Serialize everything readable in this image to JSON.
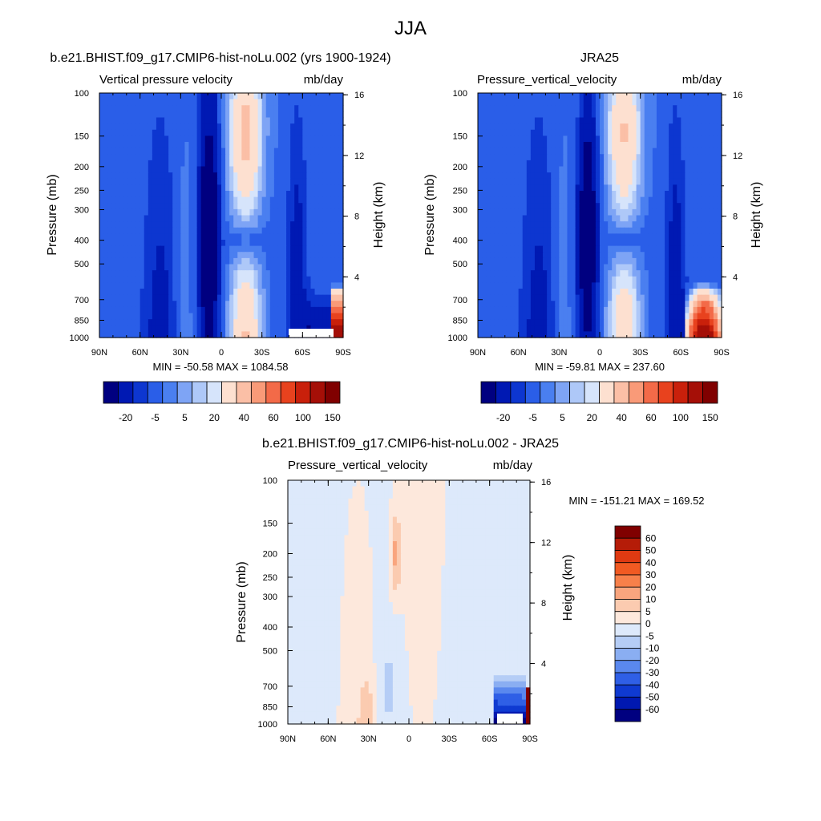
{
  "figure": {
    "title": "JJA"
  },
  "chart_data": [
    {
      "type": "heatmap",
      "case_title": "b.e21.BHIST.f09_g17.CMIP6-hist-noLu.002 (yrs 1900-1924)",
      "variable": "Vertical pressure velocity",
      "units": "mb/day",
      "ylabel": "Pressure (mb)",
      "ylabel_right": "Height (km)",
      "x_ticks": [
        "90N",
        "60N",
        "30N",
        "0",
        "30S",
        "60S",
        "90S"
      ],
      "y_ticks": [
        "100",
        "150",
        "200",
        "250",
        "300",
        "400",
        "500",
        "700",
        "850",
        "1000"
      ],
      "y_ticks_right": [
        "16",
        "12",
        "8",
        "4"
      ],
      "stats": "MIN = -50.58  MAX = 1084.58",
      "legend_labels": [
        "-20",
        "-5",
        "5",
        "20",
        "40",
        "60",
        "100",
        "150"
      ]
    },
    {
      "type": "heatmap",
      "case_title": "JRA25",
      "variable": "Pressure_vertical_velocity",
      "units": "mb/day",
      "ylabel": "Pressure (mb)",
      "ylabel_right": "Height (km)",
      "x_ticks": [
        "90N",
        "60N",
        "30N",
        "0",
        "30S",
        "60S",
        "90S"
      ],
      "y_ticks": [
        "100",
        "150",
        "200",
        "250",
        "300",
        "400",
        "500",
        "700",
        "850",
        "1000"
      ],
      "y_ticks_right": [
        "16",
        "12",
        "8",
        "4"
      ],
      "stats": "MIN = -59.81  MAX = 237.60",
      "legend_labels": [
        "-20",
        "-5",
        "5",
        "20",
        "40",
        "60",
        "100",
        "150"
      ]
    },
    {
      "type": "heatmap",
      "case_title": "b.e21.BHIST.f09_g17.CMIP6-hist-noLu.002 - JRA25",
      "variable": "Pressure_vertical_velocity",
      "units": "mb/day",
      "ylabel": "Pressure (mb)",
      "ylabel_right": "Height (km)",
      "x_ticks": [
        "90N",
        "60N",
        "30N",
        "0",
        "30S",
        "60S",
        "90S"
      ],
      "y_ticks": [
        "100",
        "150",
        "200",
        "250",
        "300",
        "400",
        "500",
        "700",
        "850",
        "1000"
      ],
      "y_ticks_right": [
        "16",
        "12",
        "8",
        "4"
      ],
      "stats": "MIN = -151.21  MAX = 169.52",
      "legend_labels": [
        "60",
        "50",
        "40",
        "30",
        "20",
        "10",
        "5",
        "0",
        "-5",
        "-10",
        "-20",
        "-30",
        "-40",
        "-50",
        "-60"
      ]
    }
  ],
  "colors": {
    "main_scale": [
      "#000080",
      "#0019b3",
      "#0d36d0",
      "#2a5ee8",
      "#4a7ff0",
      "#7ea4f5",
      "#aec8f8",
      "#d6e4fb",
      "#fde0d0",
      "#fbbfa6",
      "#f99a78",
      "#f36a48",
      "#e8421e",
      "#c9200b",
      "#a50f07",
      "#800000"
    ],
    "diff_scale": [
      "#800000",
      "#b51c08",
      "#df3a12",
      "#f15a22",
      "#f7804a",
      "#f9a57e",
      "#fbcbb0",
      "#fde8dc",
      "#dde9fb",
      "#b5cdf6",
      "#8aaef2",
      "#5a88ee",
      "#2f5fe6",
      "#0f3ad1",
      "#0018b0",
      "#000080"
    ]
  }
}
